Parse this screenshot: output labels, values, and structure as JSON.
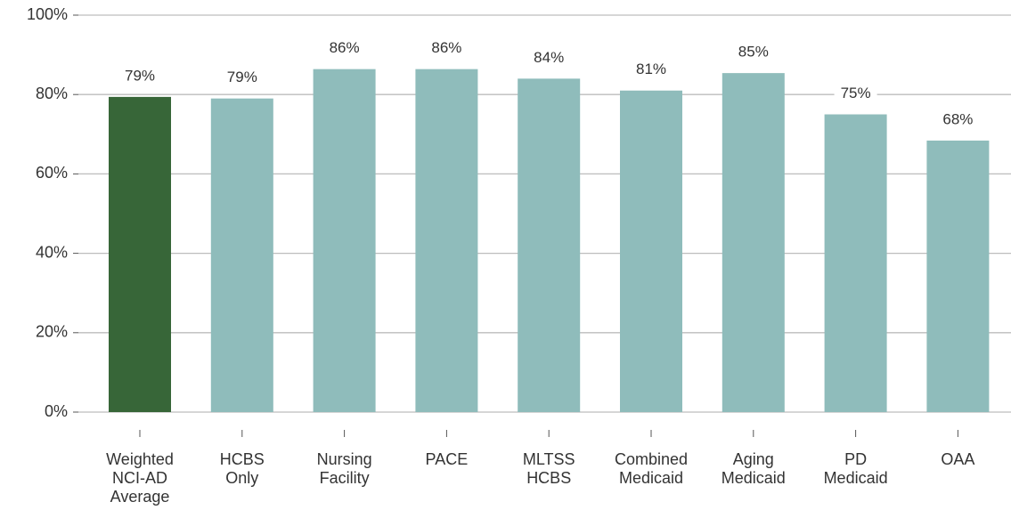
{
  "chart_data": {
    "type": "bar",
    "categories": [
      "Weighted NCI-AD Average",
      "HCBS Only",
      "Nursing Facility",
      "PACE",
      "MLTSS HCBS",
      "Combined Medicaid",
      "Aging Medicaid",
      "PD Medicaid",
      "OAA"
    ],
    "values": [
      79.4,
      79,
      86.4,
      86.4,
      84,
      81,
      85.4,
      75,
      68.4
    ],
    "value_labels": [
      "79%",
      "79%",
      "86%",
      "86%",
      "84%",
      "81%",
      "85%",
      "75%",
      "68%"
    ],
    "colors": [
      "#376638",
      "#8fbcbb",
      "#8fbcbb",
      "#8fbcbb",
      "#8fbcbb",
      "#8fbcbb",
      "#8fbcbb",
      "#8fbcbb",
      "#8fbcbb"
    ],
    "ylim": [
      0,
      100
    ],
    "yticks": [
      {
        "value": 0,
        "label": "0%"
      },
      {
        "value": 20,
        "label": "20%"
      },
      {
        "value": 40,
        "label": "40%"
      },
      {
        "value": 60,
        "label": "60%"
      },
      {
        "value": 80,
        "label": "80%"
      },
      {
        "value": 100,
        "label": "100%"
      }
    ],
    "grid": true
  }
}
